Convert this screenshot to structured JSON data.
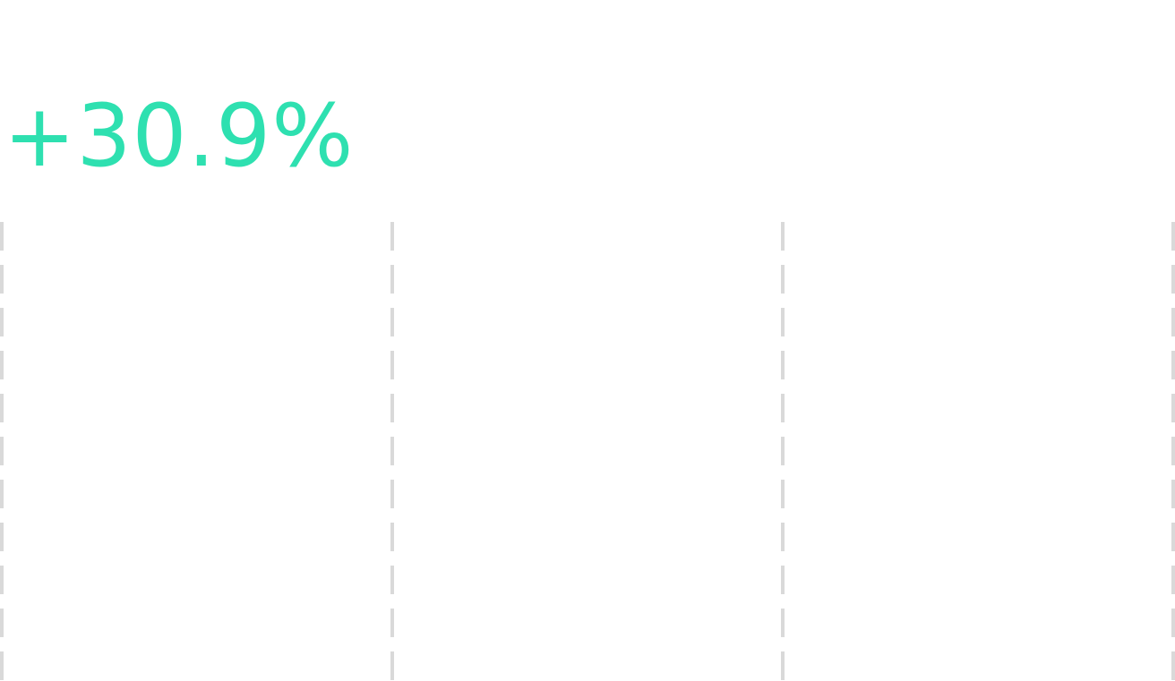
{
  "stat": {
    "value": "+30.9%",
    "color": "#2ee0b0"
  },
  "chart_data": {
    "type": "line",
    "title": "",
    "xlabel": "",
    "ylabel": "",
    "gridlines": {
      "orientation": "vertical",
      "style": "dashed",
      "color": "#d9d9d9",
      "count": 4
    },
    "series": []
  }
}
